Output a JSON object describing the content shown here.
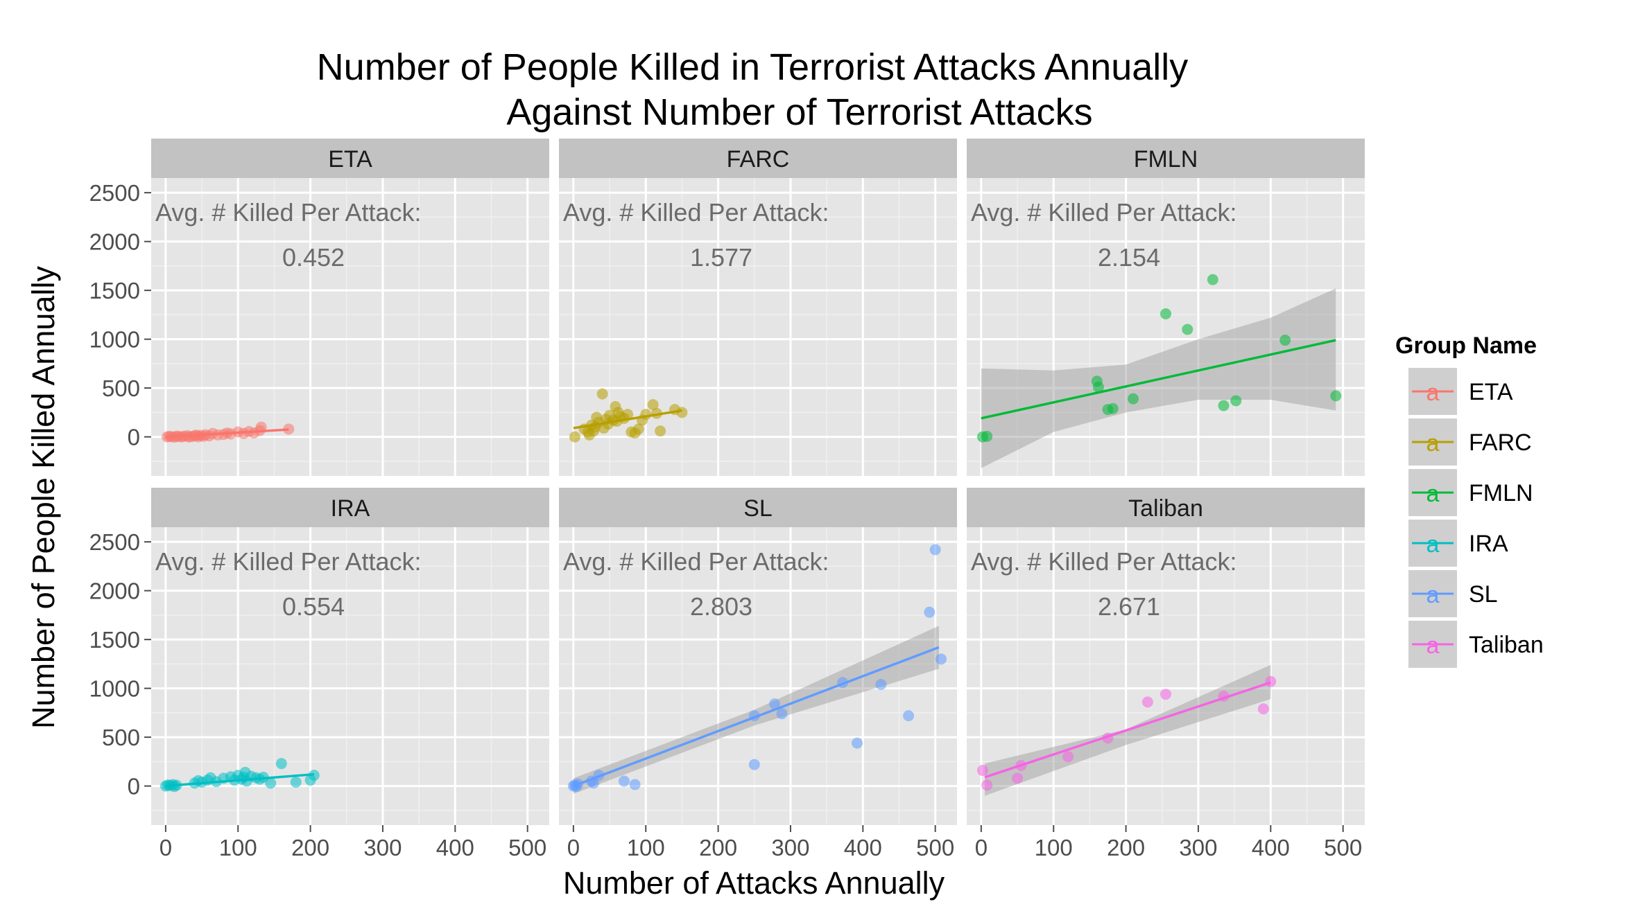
{
  "chart_data": {
    "type": "scatter",
    "title_lines": [
      "Number of People Killed in Terrorist Attacks Annually",
      "Against Number of Terrorist Attacks"
    ],
    "xlabel": "Number of Attacks Annually",
    "ylabel": "Number of People Killed Annually",
    "xlim": [
      -20,
      530
    ],
    "ylim": [
      -400,
      2650
    ],
    "x_ticks": [
      0,
      100,
      200,
      300,
      400,
      500
    ],
    "y_ticks": [
      0,
      500,
      1000,
      1500,
      2000,
      2500
    ],
    "grid": true,
    "facet_layout": [
      2,
      3
    ],
    "annotation_label": "Avg. # Killed Per Attack:",
    "legend": {
      "title": "Group Name",
      "position": "right",
      "key_glyph": "a"
    },
    "panels": [
      {
        "name": "ETA",
        "color": "#F8766D",
        "avg_killed_per_attack": "0.452",
        "trend": {
          "x": [
            0,
            170
          ],
          "y": [
            0,
            75
          ]
        },
        "ribbon": false,
        "points": [
          [
            2,
            0
          ],
          [
            5,
            5
          ],
          [
            8,
            2
          ],
          [
            12,
            -3
          ],
          [
            15,
            8
          ],
          [
            18,
            3
          ],
          [
            22,
            0
          ],
          [
            25,
            6
          ],
          [
            30,
            12
          ],
          [
            32,
            -2
          ],
          [
            36,
            4
          ],
          [
            40,
            10
          ],
          [
            42,
            18
          ],
          [
            45,
            1
          ],
          [
            48,
            15
          ],
          [
            52,
            6
          ],
          [
            55,
            22
          ],
          [
            60,
            10
          ],
          [
            65,
            35
          ],
          [
            72,
            20
          ],
          [
            80,
            25
          ],
          [
            85,
            40
          ],
          [
            90,
            30
          ],
          [
            100,
            50
          ],
          [
            108,
            35
          ],
          [
            115,
            55
          ],
          [
            122,
            40
          ],
          [
            130,
            65
          ],
          [
            132,
            100
          ],
          [
            170,
            80
          ]
        ]
      },
      {
        "name": "FARC",
        "color": "#B79F00",
        "avg_killed_per_attack": "1.577",
        "trend": {
          "x": [
            0,
            150
          ],
          "y": [
            90,
            270
          ]
        },
        "ribbon": false,
        "points": [
          [
            2,
            0
          ],
          [
            15,
            80
          ],
          [
            20,
            50
          ],
          [
            22,
            20
          ],
          [
            25,
            120
          ],
          [
            28,
            60
          ],
          [
            30,
            100
          ],
          [
            32,
            200
          ],
          [
            35,
            150
          ],
          [
            40,
            440
          ],
          [
            42,
            90
          ],
          [
            45,
            180
          ],
          [
            48,
            130
          ],
          [
            50,
            220
          ],
          [
            55,
            170
          ],
          [
            58,
            310
          ],
          [
            60,
            160
          ],
          [
            62,
            250
          ],
          [
            65,
            210
          ],
          [
            70,
            190
          ],
          [
            75,
            230
          ],
          [
            80,
            50
          ],
          [
            85,
            40
          ],
          [
            90,
            80
          ],
          [
            95,
            170
          ],
          [
            100,
            230
          ],
          [
            110,
            330
          ],
          [
            115,
            240
          ],
          [
            120,
            60
          ],
          [
            140,
            280
          ],
          [
            150,
            250
          ]
        ]
      },
      {
        "name": "FMLN",
        "color": "#00BA38",
        "avg_killed_per_attack": "2.154",
        "trend": {
          "x": [
            0,
            490
          ],
          "y": [
            190,
            990
          ]
        },
        "ribbon": {
          "x": [
            0,
            100,
            200,
            300,
            400,
            490
          ],
          "lower": [
            -320,
            50,
            250,
            380,
            380,
            270
          ],
          "upper": [
            700,
            680,
            740,
            1000,
            1220,
            1520
          ]
        },
        "points": [
          [
            2,
            0
          ],
          [
            8,
            5
          ],
          [
            160,
            570
          ],
          [
            162,
            510
          ],
          [
            175,
            280
          ],
          [
            182,
            290
          ],
          [
            210,
            390
          ],
          [
            255,
            1260
          ],
          [
            285,
            1100
          ],
          [
            320,
            1610
          ],
          [
            335,
            320
          ],
          [
            352,
            370
          ],
          [
            420,
            990
          ],
          [
            490,
            420
          ]
        ]
      },
      {
        "name": "IRA",
        "color": "#00BFC4",
        "avg_killed_per_attack": "0.554",
        "trend": {
          "x": [
            0,
            205
          ],
          "y": [
            0,
            120
          ]
        },
        "ribbon": false,
        "points": [
          [
            0,
            0
          ],
          [
            3,
            10
          ],
          [
            6,
            5
          ],
          [
            10,
            15
          ],
          [
            12,
            -5
          ],
          [
            15,
            8
          ],
          [
            40,
            30
          ],
          [
            45,
            55
          ],
          [
            50,
            40
          ],
          [
            58,
            60
          ],
          [
            62,
            85
          ],
          [
            70,
            45
          ],
          [
            80,
            80
          ],
          [
            90,
            95
          ],
          [
            95,
            60
          ],
          [
            100,
            110
          ],
          [
            105,
            70
          ],
          [
            108,
            90
          ],
          [
            110,
            140
          ],
          [
            112,
            50
          ],
          [
            118,
            100
          ],
          [
            125,
            85
          ],
          [
            130,
            70
          ],
          [
            135,
            90
          ],
          [
            145,
            30
          ],
          [
            160,
            230
          ],
          [
            180,
            40
          ],
          [
            200,
            60
          ],
          [
            205,
            110
          ]
        ]
      },
      {
        "name": "SL",
        "color": "#619CFF",
        "avg_killed_per_attack": "2.803",
        "trend": {
          "x": [
            0,
            505
          ],
          "y": [
            0,
            1420
          ]
        },
        "ribbon": {
          "x": [
            0,
            250,
            505
          ],
          "lower": [
            -80,
            620,
            1200
          ],
          "upper": [
            80,
            780,
            1640
          ]
        },
        "points": [
          [
            0,
            0
          ],
          [
            2,
            10
          ],
          [
            4,
            -5
          ],
          [
            6,
            20
          ],
          [
            25,
            50
          ],
          [
            28,
            30
          ],
          [
            35,
            110
          ],
          [
            70,
            50
          ],
          [
            85,
            15
          ],
          [
            250,
            220
          ],
          [
            250,
            720
          ],
          [
            278,
            840
          ],
          [
            288,
            740
          ],
          [
            372,
            1060
          ],
          [
            392,
            440
          ],
          [
            425,
            1040
          ],
          [
            463,
            720
          ],
          [
            492,
            1780
          ],
          [
            500,
            2420
          ],
          [
            508,
            1300
          ]
        ]
      },
      {
        "name": "Taliban",
        "color": "#F564E3",
        "avg_killed_per_attack": "2.671",
        "trend": {
          "x": [
            5,
            400
          ],
          "y": [
            90,
            1060
          ]
        },
        "ribbon": {
          "x": [
            5,
            200,
            400
          ],
          "lower": [
            -100,
            420,
            890
          ],
          "upper": [
            230,
            580,
            1240
          ]
        },
        "points": [
          [
            2,
            160
          ],
          [
            8,
            10
          ],
          [
            50,
            80
          ],
          [
            55,
            210
          ],
          [
            120,
            300
          ],
          [
            175,
            490
          ],
          [
            230,
            860
          ],
          [
            255,
            940
          ],
          [
            335,
            920
          ],
          [
            390,
            790
          ],
          [
            400,
            1070
          ]
        ]
      }
    ]
  }
}
